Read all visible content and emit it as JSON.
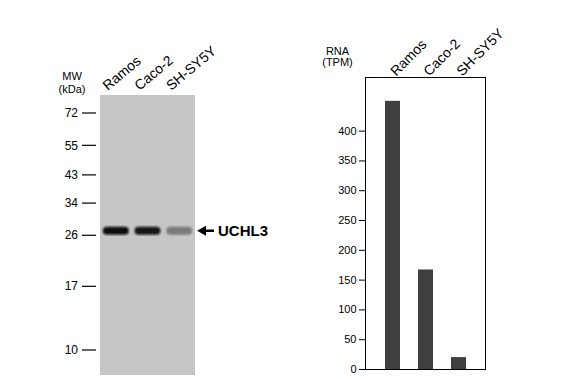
{
  "chart_data": {
    "type": "bar",
    "y_label": "RNA (TPM)",
    "categories": [
      "Ramos",
      "Caco-2",
      "SH-SY5Y"
    ],
    "values": [
      450,
      167,
      20
    ],
    "color": "#404040",
    "ylim": [
      0,
      490
    ],
    "yticks": [
      0,
      50,
      100,
      150,
      200,
      250,
      300,
      350,
      400
    ],
    "grid": false
  },
  "western_blot": {
    "mw_label": "MW (kDa)",
    "lanes": [
      "Ramos",
      "Caco-2",
      "SH-SY5Y"
    ],
    "markers": [
      72,
      55,
      43,
      34,
      26,
      17,
      10
    ],
    "band_label": "UCHL3",
    "band_kda": 27,
    "band_intensity": [
      1,
      0.95,
      0.4
    ]
  }
}
